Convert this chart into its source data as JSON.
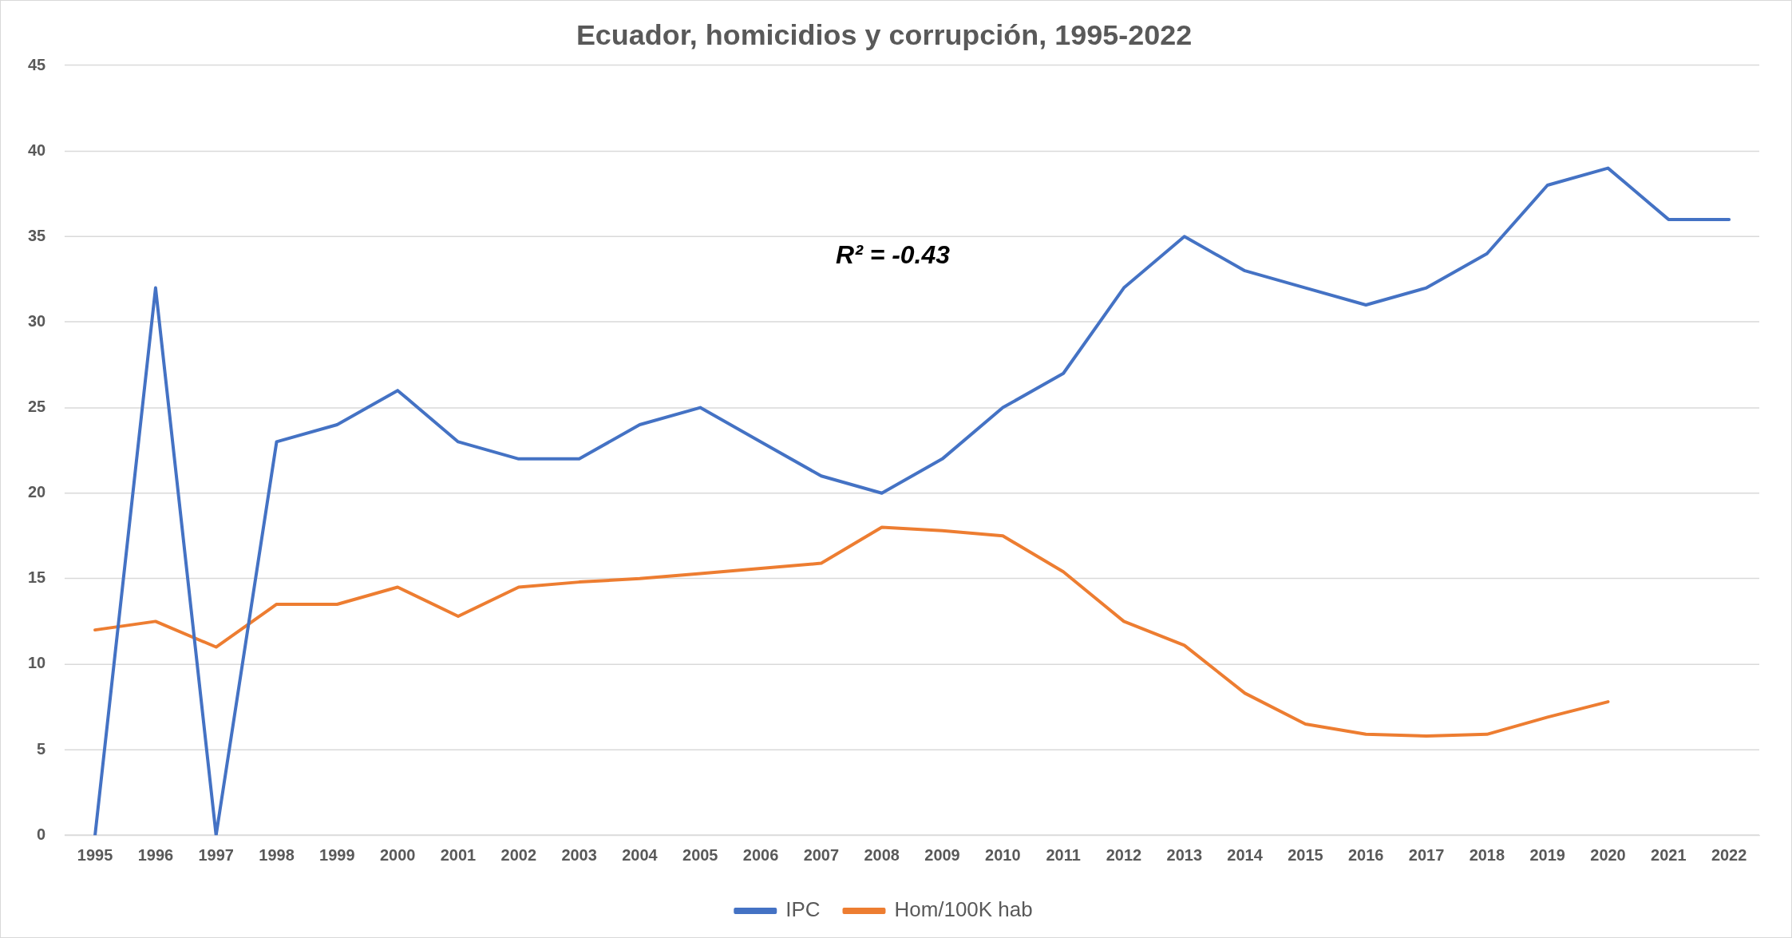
{
  "chart_data": {
    "type": "line",
    "title": "Ecuador, homicidios y corrupción, 1995-2022",
    "categories": [
      "1995",
      "1996",
      "1997",
      "1998",
      "1999",
      "2000",
      "2001",
      "2002",
      "2003",
      "2004",
      "2005",
      "2006",
      "2007",
      "2008",
      "2009",
      "2010",
      "2011",
      "2012",
      "2013",
      "2014",
      "2015",
      "2016",
      "2017",
      "2018",
      "2019",
      "2020",
      "2021",
      "2022"
    ],
    "series": [
      {
        "name": "IPC",
        "color": "#4472c4",
        "values": [
          0,
          32,
          0,
          23,
          24,
          26,
          23,
          22,
          22,
          24,
          25,
          23,
          21,
          20,
          22,
          25,
          27,
          32,
          35,
          33,
          32,
          31,
          32,
          34,
          38,
          39,
          36,
          36
        ]
      },
      {
        "name": "Hom/100K hab",
        "color": "#ed7d31",
        "values": [
          12.0,
          12.5,
          11.0,
          13.5,
          13.5,
          14.5,
          12.8,
          14.5,
          14.8,
          15.0,
          15.3,
          15.6,
          15.9,
          18.0,
          17.8,
          17.5,
          15.4,
          12.5,
          11.1,
          8.3,
          6.5,
          5.9,
          5.8,
          5.9,
          6.9,
          7.8,
          null,
          null
        ]
      }
    ],
    "ylim": [
      0,
      45
    ],
    "yticks": [
      0,
      5,
      10,
      15,
      20,
      25,
      30,
      35,
      40,
      45
    ],
    "grid": "y",
    "legend": "bottom",
    "marker": "none",
    "line_style": "solid",
    "annotations": [
      "R² = -0.43"
    ]
  }
}
